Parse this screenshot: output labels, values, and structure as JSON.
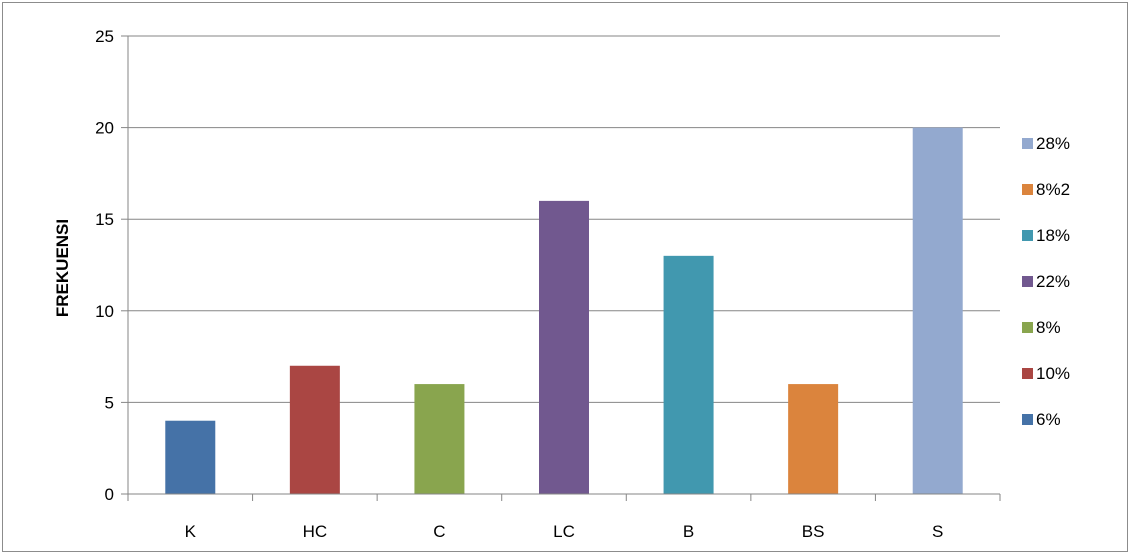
{
  "chart_data": {
    "type": "bar",
    "categories": [
      "K",
      "HC",
      "C",
      "LC",
      "B",
      "BS",
      "S"
    ],
    "values": [
      4,
      7,
      6,
      16,
      13,
      6,
      20
    ],
    "colors": [
      "#4572A7",
      "#AA4643",
      "#89A54E",
      "#71588F",
      "#4198AF",
      "#DB843D",
      "#93A9CF"
    ],
    "title": "",
    "xlabel": "",
    "ylabel": "FREKUENSI",
    "ylim": [
      0,
      25
    ],
    "yticks": [
      0,
      5,
      10,
      15,
      20,
      25
    ],
    "grid": true,
    "legend": {
      "position": "right",
      "entries": [
        {
          "label": "28%",
          "color": "#93A9CF"
        },
        {
          "label": "8%2",
          "color": "#DB843D"
        },
        {
          "label": "18%",
          "color": "#4198AF"
        },
        {
          "label": "22%",
          "color": "#71588F"
        },
        {
          "label": "8%",
          "color": "#89A54E"
        },
        {
          "label": "10%",
          "color": "#AA4643"
        },
        {
          "label": "6%",
          "color": "#4572A7"
        }
      ]
    }
  }
}
